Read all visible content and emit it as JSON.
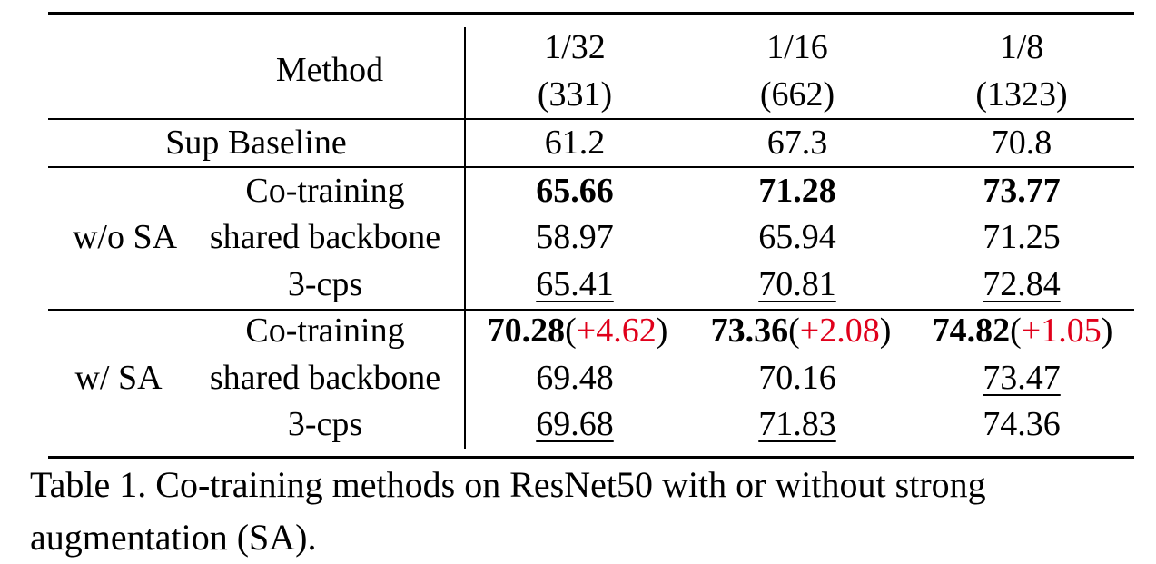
{
  "table": {
    "header": {
      "method": "Method",
      "splits": [
        {
          "fraction": "1/32",
          "count": "(331)"
        },
        {
          "fraction": "1/16",
          "count": "(662)"
        },
        {
          "fraction": "1/8",
          "count": "(1323)"
        }
      ]
    },
    "baseline": {
      "label": "Sup Baseline",
      "values": [
        "61.2",
        "67.3",
        "70.8"
      ]
    },
    "groups": [
      {
        "label": "w/o SA",
        "rows": [
          {
            "method": "Co-training",
            "cells": [
              {
                "value": "65.66",
                "bold": true,
                "underline": false,
                "delta": ""
              },
              {
                "value": "71.28",
                "bold": true,
                "underline": false,
                "delta": ""
              },
              {
                "value": "73.77",
                "bold": true,
                "underline": false,
                "delta": ""
              }
            ]
          },
          {
            "method": "shared backbone",
            "cells": [
              {
                "value": "58.97",
                "bold": false,
                "underline": false,
                "delta": ""
              },
              {
                "value": "65.94",
                "bold": false,
                "underline": false,
                "delta": ""
              },
              {
                "value": "71.25",
                "bold": false,
                "underline": false,
                "delta": ""
              }
            ]
          },
          {
            "method": "3-cps",
            "cells": [
              {
                "value": "65.41",
                "bold": false,
                "underline": true,
                "delta": ""
              },
              {
                "value": "70.81",
                "bold": false,
                "underline": true,
                "delta": ""
              },
              {
                "value": "72.84",
                "bold": false,
                "underline": true,
                "delta": ""
              }
            ]
          }
        ]
      },
      {
        "label": "w/ SA",
        "rows": [
          {
            "method": "Co-training",
            "cells": [
              {
                "value": "70.28",
                "bold": true,
                "underline": false,
                "delta": "+4.62"
              },
              {
                "value": "73.36",
                "bold": true,
                "underline": false,
                "delta": "+2.08"
              },
              {
                "value": "74.82",
                "bold": true,
                "underline": false,
                "delta": "+1.05"
              }
            ]
          },
          {
            "method": "shared backbone",
            "cells": [
              {
                "value": "69.48",
                "bold": false,
                "underline": false,
                "delta": ""
              },
              {
                "value": "70.16",
                "bold": false,
                "underline": false,
                "delta": ""
              },
              {
                "value": "73.47",
                "bold": false,
                "underline": true,
                "delta": ""
              }
            ]
          },
          {
            "method": "3-cps",
            "cells": [
              {
                "value": "69.68",
                "bold": false,
                "underline": true,
                "delta": ""
              },
              {
                "value": "71.83",
                "bold": false,
                "underline": true,
                "delta": ""
              },
              {
                "value": "74.36",
                "bold": false,
                "underline": false,
                "delta": ""
              }
            ]
          }
        ]
      }
    ],
    "delta_color": "#e0001b"
  },
  "caption": {
    "line1": "Table 1. Co-training methods on ResNet50 with or without strong",
    "line2": "augmentation (SA)."
  }
}
